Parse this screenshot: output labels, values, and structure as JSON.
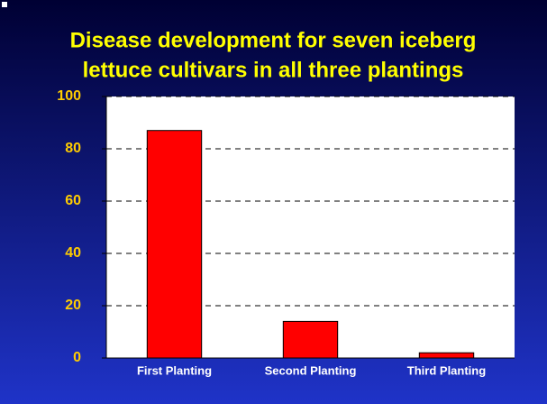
{
  "chart_data": {
    "type": "bar",
    "title": [
      "Disease development for seven iceberg",
      "lettuce cultivars in all three plantings"
    ],
    "categories": [
      "First Planting",
      "Second Planting",
      "Third Planting"
    ],
    "values": [
      87,
      14,
      2
    ],
    "color": "#ff0000",
    "ylim": [
      0,
      100
    ],
    "yticks": [
      0,
      20,
      40,
      60,
      80,
      100
    ],
    "grid": true
  }
}
